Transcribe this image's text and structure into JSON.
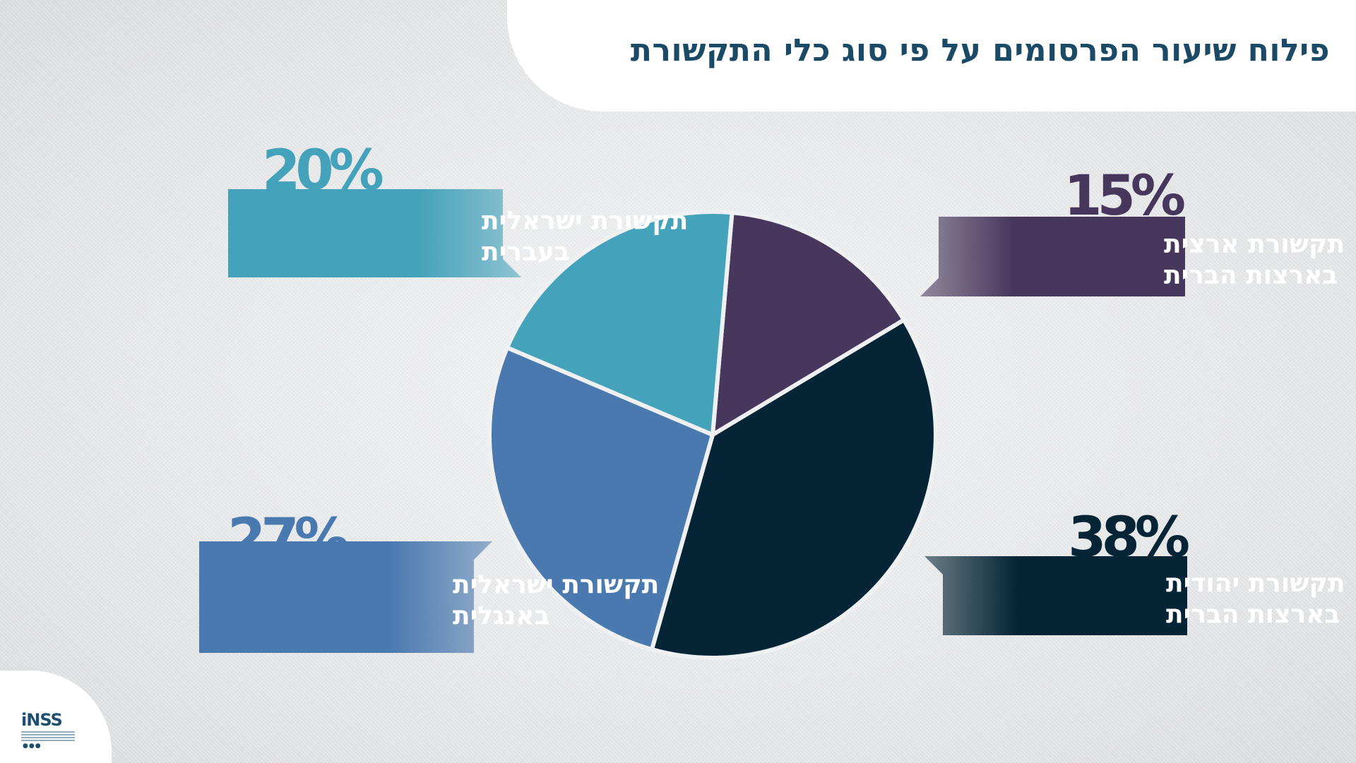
{
  "title": "פילוח שיעור הפרסומים על פי סוג כלי התקשורת",
  "logo": {
    "text": "iNSS",
    "icon": "inss-logo-icon"
  },
  "chart_data": {
    "type": "pie",
    "title": "פילוח שיעור הפרסומים על פי סוג כלי התקשורת",
    "start_angle_deg": 5,
    "slices": [
      {
        "line1": "תקשורת ארצית",
        "line2": "בארצות הברית",
        "value": 15,
        "label": "15%",
        "color": "#47375c"
      },
      {
        "line1": "תקשורת יהודית",
        "line2": "בארצות הברית",
        "value": 38,
        "label": "38%",
        "color": "#052537"
      },
      {
        "line1": "תקשורת ישראלית",
        "line2": "באנגלית",
        "value": 27,
        "label": "27%",
        "color": "#4a79b0"
      },
      {
        "line1": "תקשורת ישראלית",
        "line2": "בעברית",
        "value": 20,
        "label": "20%",
        "color": "#44a2ba"
      }
    ]
  }
}
